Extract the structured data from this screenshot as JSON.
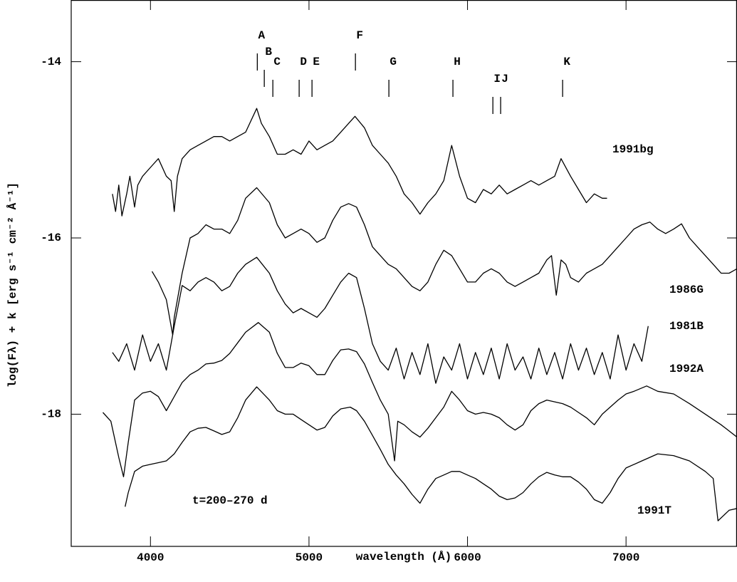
{
  "chart_data": {
    "type": "line",
    "xlabel": "wavelength (Å)",
    "ylabel": "log(Fλ) + k [erg s⁻¹ cm⁻² Å⁻¹]",
    "annotation": "t=200–270 d",
    "xlim": [
      3500,
      7700
    ],
    "ylim": [
      -19.5,
      -13.3
    ],
    "xticks": [
      4000,
      5000,
      6000,
      7000
    ],
    "yticks": [
      -14,
      -16,
      -18
    ],
    "grid": false,
    "line_ids": [
      {
        "label": "A",
        "wavelength": 4674
      },
      {
        "label": "B",
        "wavelength": 4718
      },
      {
        "label": "C",
        "wavelength": 4772
      },
      {
        "label": "D",
        "wavelength": 4938
      },
      {
        "label": "E",
        "wavelength": 5019
      },
      {
        "label": "F",
        "wavelength": 5293
      },
      {
        "label": "G",
        "wavelength": 5504
      },
      {
        "label": "H",
        "wavelength": 5908
      },
      {
        "label": "I",
        "wavelength": 6160
      },
      {
        "label": "J",
        "wavelength": 6209
      },
      {
        "label": "K",
        "wavelength": 6600
      }
    ],
    "series": [
      {
        "name": "1991bg",
        "color": "#000000",
        "x": [
          3760,
          3780,
          3800,
          3820,
          3850,
          3870,
          3900,
          3920,
          3950,
          4000,
          4050,
          4100,
          4130,
          4150,
          4170,
          4200,
          4250,
          4300,
          4350,
          4400,
          4450,
          4500,
          4550,
          4600,
          4670,
          4700,
          4750,
          4800,
          4850,
          4900,
          4950,
          5000,
          5050,
          5100,
          5150,
          5200,
          5250,
          5290,
          5350,
          5400,
          5450,
          5500,
          5550,
          5600,
          5650,
          5700,
          5750,
          5800,
          5850,
          5900,
          5950,
          6000,
          6050,
          6100,
          6150,
          6200,
          6250,
          6300,
          6350,
          6400,
          6450,
          6500,
          6550,
          6590,
          6650,
          6700,
          6750,
          6800,
          6850,
          6880
        ],
        "values": [
          -15.5,
          -15.7,
          -15.4,
          -15.75,
          -15.5,
          -15.3,
          -15.65,
          -15.4,
          -15.3,
          -15.2,
          -15.1,
          -15.3,
          -15.35,
          -15.7,
          -15.3,
          -15.1,
          -15.0,
          -14.95,
          -14.9,
          -14.85,
          -14.85,
          -14.9,
          -14.85,
          -14.8,
          -14.53,
          -14.7,
          -14.85,
          -15.05,
          -15.05,
          -15.0,
          -15.05,
          -14.9,
          -15.0,
          -14.95,
          -14.9,
          -14.8,
          -14.7,
          -14.62,
          -14.75,
          -14.95,
          -15.05,
          -15.15,
          -15.3,
          -15.5,
          -15.6,
          -15.73,
          -15.6,
          -15.5,
          -15.35,
          -14.95,
          -15.3,
          -15.55,
          -15.6,
          -15.45,
          -15.5,
          -15.4,
          -15.5,
          -15.45,
          -15.4,
          -15.35,
          -15.4,
          -15.35,
          -15.3,
          -15.1,
          -15.3,
          -15.45,
          -15.6,
          -15.5,
          -15.55,
          -15.55
        ]
      },
      {
        "name": "1986G",
        "color": "#000000",
        "x": [
          4010,
          4050,
          4100,
          4140,
          4150,
          4200,
          4250,
          4300,
          4350,
          4400,
          4450,
          4500,
          4550,
          4600,
          4670,
          4750,
          4800,
          4850,
          4900,
          4950,
          5000,
          5050,
          5100,
          5150,
          5200,
          5250,
          5300,
          5350,
          5400,
          5450,
          5500,
          5550,
          5600,
          5650,
          5700,
          5750,
          5800,
          5850,
          5900,
          5950,
          6000,
          6050,
          6100,
          6150,
          6200,
          6250,
          6300,
          6350,
          6400,
          6450,
          6500,
          6530,
          6560,
          6590,
          6620,
          6650,
          6700,
          6750,
          6800,
          6850,
          6900,
          6950,
          7000,
          7050,
          7100,
          7150,
          7200,
          7250,
          7300,
          7350,
          7400,
          7450,
          7500,
          7550,
          7600,
          7650,
          7700
        ],
        "values": [
          -16.38,
          -16.5,
          -16.7,
          -17.1,
          -16.9,
          -16.4,
          -16.0,
          -15.95,
          -15.85,
          -15.9,
          -15.9,
          -15.95,
          -15.8,
          -15.55,
          -15.43,
          -15.6,
          -15.85,
          -16.0,
          -15.95,
          -15.9,
          -15.95,
          -16.05,
          -16.0,
          -15.8,
          -15.65,
          -15.61,
          -15.65,
          -15.85,
          -16.1,
          -16.2,
          -16.3,
          -16.35,
          -16.45,
          -16.55,
          -16.6,
          -16.5,
          -16.3,
          -16.14,
          -16.2,
          -16.35,
          -16.5,
          -16.5,
          -16.4,
          -16.35,
          -16.4,
          -16.5,
          -16.55,
          -16.5,
          -16.45,
          -16.4,
          -16.25,
          -16.2,
          -16.65,
          -16.25,
          -16.3,
          -16.45,
          -16.5,
          -16.4,
          -16.35,
          -16.3,
          -16.2,
          -16.1,
          -16.0,
          -15.9,
          -15.85,
          -15.82,
          -15.9,
          -15.95,
          -15.9,
          -15.84,
          -16.0,
          -16.1,
          -16.2,
          -16.3,
          -16.4,
          -16.4,
          -16.35
        ]
      },
      {
        "name": "1981B",
        "color": "#000000",
        "x": [
          3760,
          3800,
          3850,
          3900,
          3950,
          4000,
          4050,
          4100,
          4150,
          4200,
          4250,
          4300,
          4350,
          4400,
          4450,
          4500,
          4550,
          4600,
          4670,
          4750,
          4800,
          4850,
          4900,
          4950,
          5000,
          5050,
          5100,
          5150,
          5200,
          5250,
          5300,
          5350,
          5400,
          5450,
          5500,
          5550,
          5600,
          5650,
          5700,
          5750,
          5800,
          5850,
          5900,
          5950,
          6000,
          6050,
          6100,
          6150,
          6200,
          6250,
          6300,
          6350,
          6400,
          6450,
          6500,
          6550,
          6600,
          6650,
          6700,
          6750,
          6800,
          6850,
          6900,
          6950,
          7000,
          7050,
          7100,
          7140
        ],
        "values": [
          -17.3,
          -17.4,
          -17.2,
          -17.5,
          -17.1,
          -17.4,
          -17.2,
          -17.5,
          -17.0,
          -16.54,
          -16.6,
          -16.5,
          -16.45,
          -16.5,
          -16.6,
          -16.55,
          -16.4,
          -16.3,
          -16.22,
          -16.4,
          -16.6,
          -16.75,
          -16.85,
          -16.8,
          -16.85,
          -16.9,
          -16.8,
          -16.65,
          -16.5,
          -16.4,
          -16.45,
          -16.8,
          -17.2,
          -17.4,
          -17.5,
          -17.25,
          -17.6,
          -17.3,
          -17.55,
          -17.2,
          -17.65,
          -17.35,
          -17.5,
          -17.2,
          -17.6,
          -17.3,
          -17.55,
          -17.25,
          -17.6,
          -17.2,
          -17.5,
          -17.35,
          -17.6,
          -17.25,
          -17.55,
          -17.3,
          -17.6,
          -17.2,
          -17.5,
          -17.25,
          -17.55,
          -17.3,
          -17.6,
          -17.1,
          -17.5,
          -17.2,
          -17.4,
          -17.0
        ]
      },
      {
        "name": "1992A",
        "color": "#000000",
        "x": [
          3700,
          3750,
          3800,
          3830,
          3860,
          3900,
          3950,
          4000,
          4050,
          4100,
          4150,
          4200,
          4250,
          4300,
          4350,
          4400,
          4450,
          4500,
          4550,
          4600,
          4680,
          4750,
          4800,
          4850,
          4900,
          4950,
          5000,
          5050,
          5100,
          5150,
          5200,
          5250,
          5300,
          5350,
          5400,
          5450,
          5500,
          5540,
          5560,
          5600,
          5650,
          5700,
          5750,
          5800,
          5850,
          5900,
          5950,
          6000,
          6050,
          6100,
          6150,
          6200,
          6250,
          6300,
          6350,
          6400,
          6450,
          6500,
          6550,
          6600,
          6650,
          6700,
          6750,
          6800,
          6850,
          6900,
          6950,
          7000,
          7050,
          7130,
          7200,
          7300,
          7400,
          7500,
          7600,
          7700
        ],
        "values": [
          -17.98,
          -18.08,
          -18.49,
          -18.71,
          -18.32,
          -17.84,
          -17.76,
          -17.74,
          -17.8,
          -17.96,
          -17.8,
          -17.64,
          -17.55,
          -17.5,
          -17.43,
          -17.42,
          -17.39,
          -17.31,
          -17.19,
          -17.07,
          -16.96,
          -17.07,
          -17.31,
          -17.47,
          -17.47,
          -17.42,
          -17.45,
          -17.55,
          -17.55,
          -17.39,
          -17.27,
          -17.26,
          -17.29,
          -17.43,
          -17.64,
          -17.84,
          -18.0,
          -18.53,
          -18.08,
          -18.12,
          -18.2,
          -18.26,
          -18.16,
          -18.04,
          -17.92,
          -17.74,
          -17.84,
          -17.96,
          -18.0,
          -17.98,
          -18.0,
          -18.04,
          -18.12,
          -18.18,
          -18.12,
          -17.96,
          -17.88,
          -17.84,
          -17.86,
          -17.88,
          -17.92,
          -17.98,
          -18.04,
          -18.12,
          -18.0,
          -17.92,
          -17.84,
          -17.77,
          -17.74,
          -17.68,
          -17.74,
          -17.77,
          -17.88,
          -18.0,
          -18.12,
          -18.26
        ]
      },
      {
        "name": "1991T",
        "color": "#000000",
        "x": [
          3840,
          3860,
          3900,
          3950,
          4000,
          4050,
          4100,
          4150,
          4200,
          4250,
          4300,
          4350,
          4400,
          4450,
          4500,
          4550,
          4600,
          4670,
          4750,
          4800,
          4850,
          4900,
          4950,
          5000,
          5050,
          5100,
          5150,
          5200,
          5260,
          5300,
          5350,
          5400,
          5450,
          5500,
          5550,
          5600,
          5650,
          5700,
          5750,
          5800,
          5850,
          5900,
          5950,
          6000,
          6050,
          6100,
          6150,
          6200,
          6250,
          6300,
          6350,
          6400,
          6450,
          6500,
          6550,
          6600,
          6650,
          6700,
          6750,
          6800,
          6850,
          6900,
          6950,
          7000,
          7100,
          7200,
          7300,
          7400,
          7500,
          7550,
          7580,
          7650,
          7700
        ],
        "values": [
          -19.05,
          -18.89,
          -18.65,
          -18.59,
          -18.57,
          -18.55,
          -18.53,
          -18.45,
          -18.32,
          -18.2,
          -18.16,
          -18.15,
          -18.19,
          -18.23,
          -18.2,
          -18.04,
          -17.84,
          -17.69,
          -17.84,
          -17.96,
          -18.0,
          -18.0,
          -18.06,
          -18.12,
          -18.18,
          -18.15,
          -18.02,
          -17.94,
          -17.92,
          -17.96,
          -18.08,
          -18.24,
          -18.4,
          -18.57,
          -18.69,
          -18.79,
          -18.91,
          -19.01,
          -18.85,
          -18.73,
          -18.69,
          -18.65,
          -18.65,
          -18.69,
          -18.73,
          -18.79,
          -18.85,
          -18.93,
          -18.97,
          -18.95,
          -18.89,
          -18.79,
          -18.71,
          -18.66,
          -18.69,
          -18.71,
          -18.71,
          -18.77,
          -18.85,
          -18.97,
          -19.01,
          -18.89,
          -18.73,
          -18.61,
          -18.53,
          -18.45,
          -18.47,
          -18.53,
          -18.65,
          -18.73,
          -19.21,
          -19.09,
          -19.07
        ]
      }
    ]
  }
}
